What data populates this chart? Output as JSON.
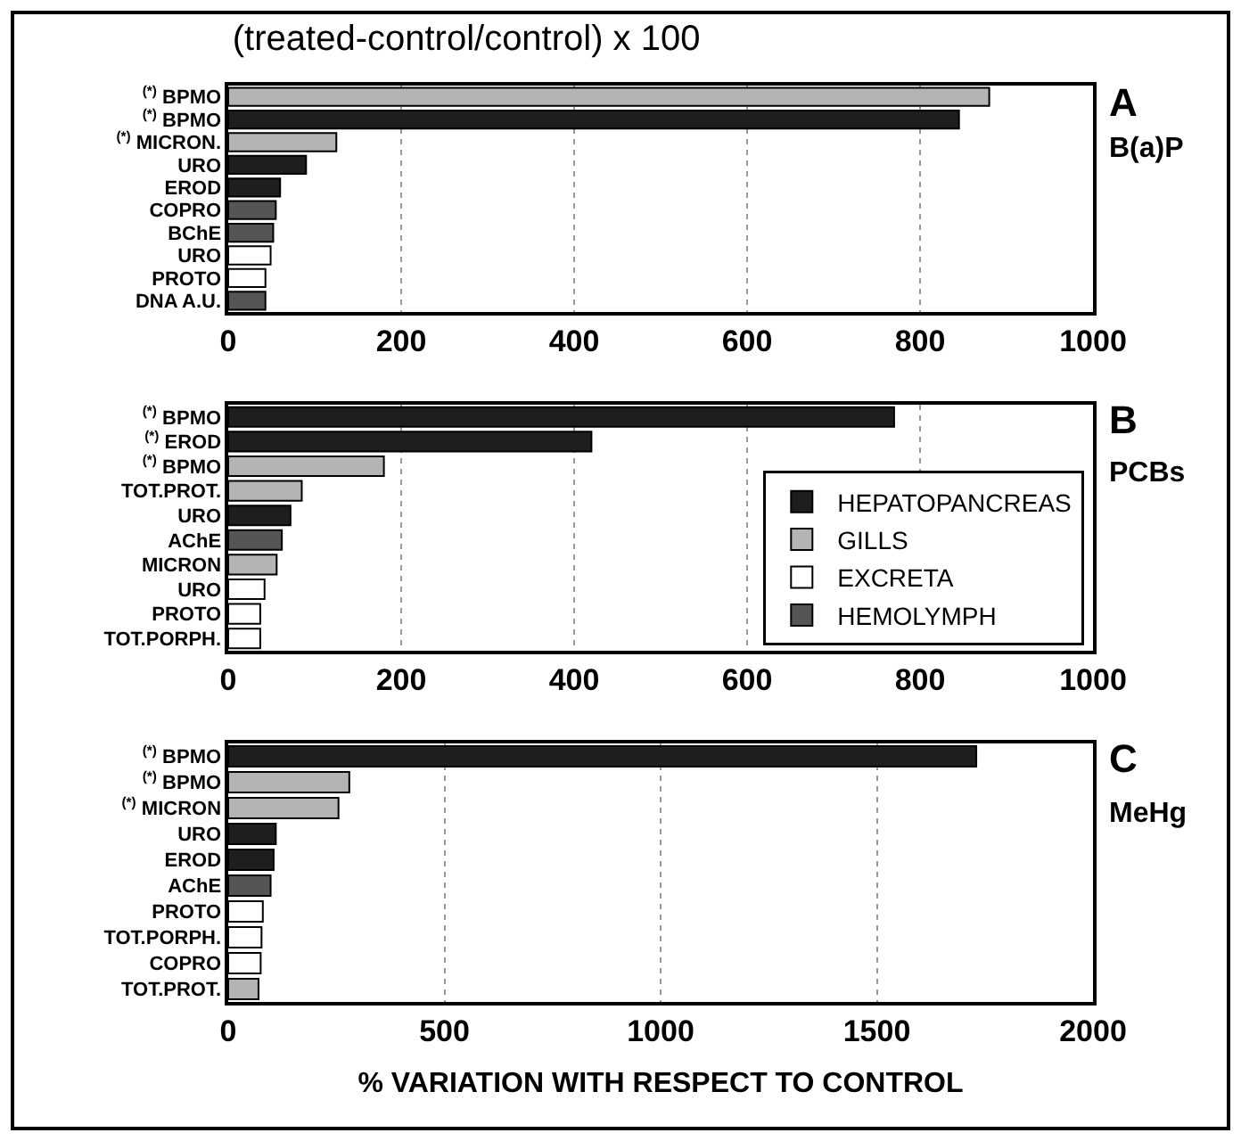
{
  "chart_data": [
    {
      "type": "bar",
      "orientation": "horizontal",
      "title": "(treated-control/control) x 100",
      "annotations": [
        "A",
        "B(a)P"
      ],
      "categories": [
        "$^{(*)}$ BPMO",
        "$^{(*)}$ BPMO",
        "$^{(*)}$ MICRON.",
        "URO",
        "EROD",
        "COPRO",
        "BChE",
        "URO",
        "PROTO",
        "DNA A.U."
      ],
      "series": [
        {
          "color": "#1e1e1e",
          "values": [
            null,
            845,
            null,
            90,
            60,
            null,
            null,
            null,
            null,
            null
          ]
        },
        {
          "color": "#b4b4b4",
          "values": [
            880,
            null,
            125,
            null,
            null,
            null,
            null,
            null,
            null,
            null
          ]
        },
        {
          "color": "#ffffff",
          "values": [
            null,
            null,
            null,
            null,
            null,
            null,
            null,
            49,
            43,
            null
          ]
        },
        {
          "color": "#555555",
          "values": [
            null,
            null,
            null,
            null,
            null,
            55,
            52,
            null,
            null,
            43
          ]
        }
      ],
      "xlim": [
        0,
        1000
      ],
      "xticks": [
        0,
        200,
        400,
        600,
        800,
        1000
      ],
      "grid": "x",
      "legend": false
    },
    {
      "type": "bar",
      "orientation": "horizontal",
      "annotations": [
        "B",
        "PCBs"
      ],
      "categories": [
        "$^{(*)}$ BPMO",
        "$^{(*)}$ EROD",
        "$^{(*)}$ BPMO",
        "TOT.PROT.",
        "URO",
        "AChE",
        "MICRON",
        "URO",
        "PROTO",
        "TOT.PORPH."
      ],
      "series": [
        {
          "name": "HEPATOPANCREAS",
          "color": "#1e1e1e",
          "values": [
            770,
            420,
            null,
            null,
            72,
            null,
            null,
            null,
            null,
            null
          ]
        },
        {
          "name": "GILLS",
          "color": "#b4b4b4",
          "values": [
            null,
            null,
            180,
            85,
            null,
            null,
            56,
            null,
            null,
            null
          ]
        },
        {
          "name": "EXCRETA",
          "color": "#ffffff",
          "values": [
            null,
            null,
            null,
            null,
            null,
            null,
            null,
            42,
            37,
            37
          ]
        },
        {
          "name": "HEMOLYMPH",
          "color": "#555555",
          "values": [
            null,
            null,
            null,
            null,
            null,
            62,
            null,
            null,
            null,
            null
          ]
        }
      ],
      "xlim": [
        0,
        1000
      ],
      "xticks": [
        0,
        200,
        400,
        600,
        800,
        1000
      ],
      "grid": "x",
      "legend": "bottom right"
    },
    {
      "type": "bar",
      "orientation": "horizontal",
      "annotations": [
        "C",
        "MeHg"
      ],
      "xlabel": "% VARIATION WITH RESPECT TO CONTROL",
      "categories": [
        "$^{(*)}$ BPMO",
        "$^{(*)}$ BPMO",
        "$^{(*)}$ MICRON",
        "URO",
        "EROD",
        "AChE",
        "PROTO",
        "TOT.PORPH.",
        "COPRO",
        "TOT.PROT."
      ],
      "series": [
        {
          "color": "#1e1e1e",
          "values": [
            1730,
            null,
            null,
            110,
            105,
            null,
            null,
            null,
            null,
            null
          ]
        },
        {
          "color": "#b4b4b4",
          "values": [
            null,
            280,
            255,
            null,
            null,
            null,
            null,
            null,
            null,
            70
          ]
        },
        {
          "color": "#ffffff",
          "values": [
            null,
            null,
            null,
            null,
            null,
            null,
            80,
            77,
            75,
            null
          ]
        },
        {
          "color": "#555555",
          "values": [
            null,
            null,
            null,
            null,
            null,
            98,
            null,
            null,
            null,
            null
          ]
        }
      ],
      "xlim": [
        0,
        2000
      ],
      "xticks": [
        0,
        500,
        1000,
        1500,
        2000
      ],
      "grid": "x",
      "legend": false
    }
  ]
}
